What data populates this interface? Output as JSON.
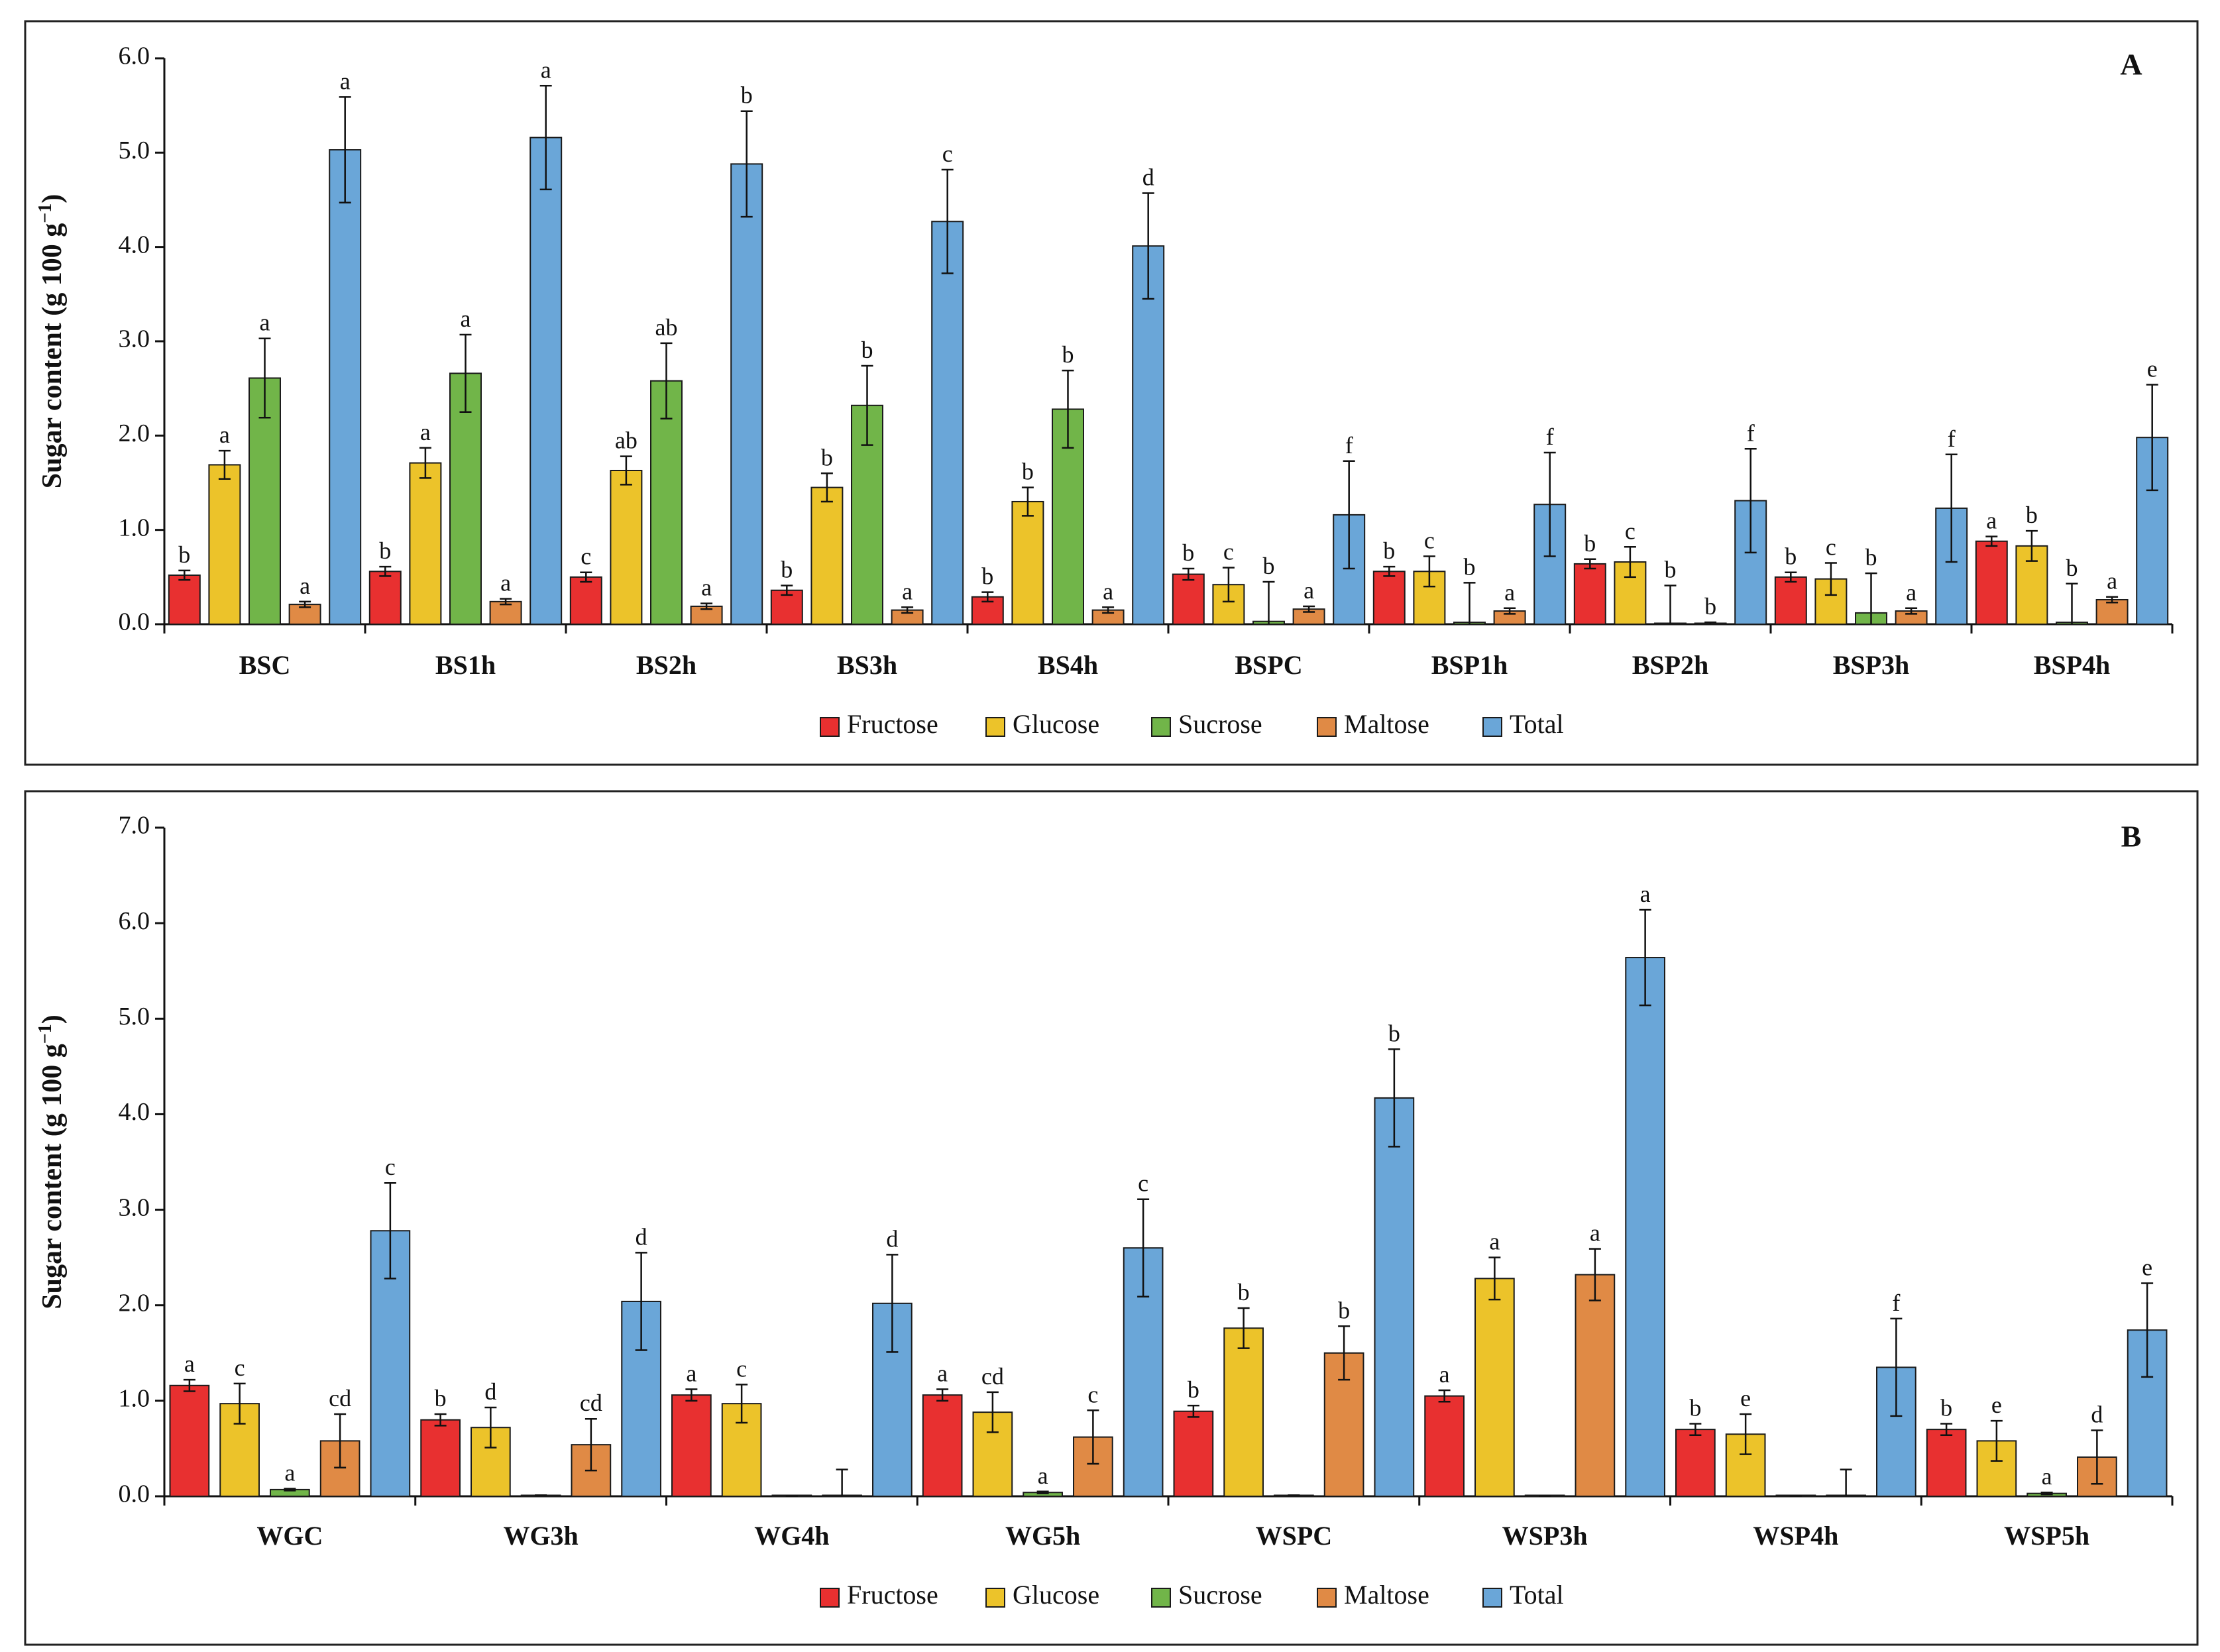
{
  "colors": {
    "Fructose": "#e83030",
    "Glucose": "#ecc32a",
    "Sucrose": "#71b549",
    "Maltose": "#e08a45",
    "Total": "#6aa6d8",
    "outline": "#1a1a1a"
  },
  "chart_data": [
    {
      "type": "bar",
      "panel_label": "A",
      "ylabel": "Sugar content (g 100 g",
      "ylabel_sup": "−1",
      "ylabel_close": ")",
      "ylim": [
        0,
        6
      ],
      "yticks": [
        0,
        1,
        2,
        3,
        4,
        5,
        6
      ],
      "ytick_labels": [
        "0.0",
        "1.0",
        "2.0",
        "3.0",
        "4.0",
        "5.0",
        "6.0"
      ],
      "categories": [
        "BSC",
        "BS1h",
        "BS2h",
        "BS3h",
        "BS4h",
        "BSPC",
        "BSP1h",
        "BSP2h",
        "BSP3h",
        "BSP4h"
      ],
      "legend": [
        "Fructose",
        "Glucose",
        "Sucrose",
        "Maltose",
        "Total"
      ],
      "series": [
        {
          "name": "Fructose",
          "values": [
            0.52,
            0.56,
            0.5,
            0.36,
            0.29,
            0.53,
            0.56,
            0.64,
            0.5,
            0.88
          ],
          "errors": [
            0.05,
            0.05,
            0.05,
            0.05,
            0.05,
            0.06,
            0.05,
            0.05,
            0.05,
            0.05
          ],
          "letters": [
            "b",
            "b",
            "c",
            "b",
            "b",
            "b",
            "b",
            "b",
            "b",
            "a"
          ]
        },
        {
          "name": "Glucose",
          "values": [
            1.69,
            1.71,
            1.63,
            1.45,
            1.3,
            0.42,
            0.56,
            0.66,
            0.48,
            0.83
          ],
          "errors": [
            0.15,
            0.16,
            0.15,
            0.15,
            0.15,
            0.18,
            0.16,
            0.16,
            0.17,
            0.16
          ],
          "letters": [
            "a",
            "a",
            "ab",
            "b",
            "b",
            "c",
            "c",
            "c",
            "c",
            "b"
          ]
        },
        {
          "name": "Sucrose",
          "values": [
            2.61,
            2.66,
            2.58,
            2.32,
            2.28,
            0.03,
            0.02,
            0.0,
            0.12,
            0.02
          ],
          "errors": [
            0.42,
            0.41,
            0.4,
            0.42,
            0.41,
            0.42,
            0.42,
            0.41,
            0.42,
            0.41
          ],
          "letters": [
            "a",
            "a",
            "ab",
            "b",
            "b",
            "b",
            "b",
            "b",
            "b",
            "b"
          ]
        },
        {
          "name": "Maltose",
          "values": [
            0.21,
            0.24,
            0.19,
            0.15,
            0.15,
            0.16,
            0.14,
            0.0,
            0.14,
            0.26
          ],
          "errors": [
            0.03,
            0.03,
            0.03,
            0.03,
            0.03,
            0.03,
            0.03,
            0.02,
            0.03,
            0.03
          ],
          "letters": [
            "a",
            "a",
            "a",
            "a",
            "a",
            "a",
            "a",
            "b",
            "a",
            "a"
          ]
        },
        {
          "name": "Total",
          "values": [
            5.03,
            5.16,
            4.88,
            4.27,
            4.01,
            1.16,
            1.27,
            1.31,
            1.23,
            1.98
          ],
          "errors": [
            0.56,
            0.55,
            0.56,
            0.55,
            0.56,
            0.57,
            0.55,
            0.55,
            0.57,
            0.56
          ],
          "letters": [
            "a",
            "a",
            "b",
            "c",
            "d",
            "f",
            "f",
            "f",
            "f",
            "e"
          ]
        }
      ]
    },
    {
      "type": "bar",
      "panel_label": "B",
      "ylabel": "Sugar content (g 100 g",
      "ylabel_sup": "−1",
      "ylabel_close": ")",
      "ylim": [
        0,
        7
      ],
      "yticks": [
        0,
        1,
        2,
        3,
        4,
        5,
        6,
        7
      ],
      "ytick_labels": [
        "0.0",
        "1.0",
        "2.0",
        "3.0",
        "4.0",
        "5.0",
        "6.0",
        "7.0"
      ],
      "categories": [
        "WGC",
        "WG3h",
        "WG4h",
        "WG5h",
        "WSPC",
        "WSP3h",
        "WSP4h",
        "WSP5h"
      ],
      "legend": [
        "Fructose",
        "Glucose",
        "Sucrose",
        "Maltose",
        "Total"
      ],
      "series": [
        {
          "name": "Fructose",
          "values": [
            1.16,
            0.8,
            1.06,
            1.06,
            0.89,
            1.05,
            0.7,
            0.7
          ],
          "errors": [
            0.06,
            0.06,
            0.06,
            0.06,
            0.06,
            0.06,
            0.06,
            0.06
          ],
          "letters": [
            "a",
            "b",
            "a",
            "a",
            "b",
            "a",
            "b",
            "b"
          ]
        },
        {
          "name": "Glucose",
          "values": [
            0.97,
            0.72,
            0.97,
            0.88,
            1.76,
            2.28,
            0.65,
            0.58
          ],
          "errors": [
            0.21,
            0.21,
            0.2,
            0.21,
            0.21,
            0.22,
            0.21,
            0.21
          ],
          "letters": [
            "c",
            "d",
            "c",
            "cd",
            "b",
            "a",
            "e",
            "e"
          ]
        },
        {
          "name": "Sucrose",
          "values": [
            0.07,
            0.01,
            0.0,
            0.04,
            0.01,
            0.0,
            0.0,
            0.03
          ],
          "errors": [
            0.01,
            0.0,
            0.0,
            0.01,
            0.0,
            0.0,
            0.0,
            0.01
          ],
          "letters": [
            "a",
            "",
            "",
            "a",
            "",
            "",
            "",
            "a"
          ]
        },
        {
          "name": "Maltose",
          "values": [
            0.58,
            0.54,
            0.0,
            0.62,
            1.5,
            2.32,
            0.0,
            0.41
          ],
          "errors": [
            0.28,
            0.27,
            0.28,
            0.28,
            0.28,
            0.27,
            0.28,
            0.28
          ],
          "letters": [
            "cd",
            "cd",
            "",
            "c",
            "b",
            "a",
            "",
            "d"
          ]
        },
        {
          "name": "Total",
          "values": [
            2.78,
            2.04,
            2.02,
            2.6,
            4.17,
            5.64,
            1.35,
            1.74
          ],
          "errors": [
            0.5,
            0.51,
            0.51,
            0.51,
            0.51,
            0.5,
            0.51,
            0.49
          ],
          "letters": [
            "c",
            "d",
            "d",
            "c",
            "b",
            "a",
            "f",
            "e"
          ]
        }
      ]
    }
  ]
}
